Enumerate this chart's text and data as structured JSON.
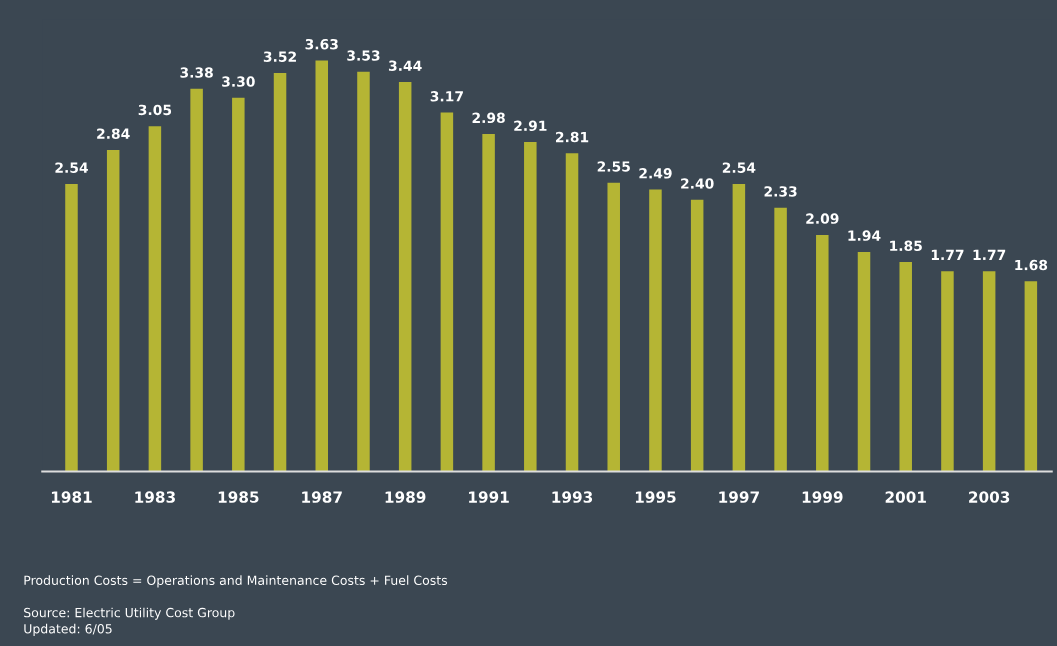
{
  "chart_data": {
    "type": "bar",
    "categories": [
      "1981",
      null,
      "1983",
      null,
      "1985",
      null,
      "1987",
      null,
      "1989",
      null,
      "1991",
      null,
      "1993",
      null,
      "1995",
      null,
      "1997",
      null,
      "1999",
      null,
      "2001",
      null,
      "2003",
      null
    ],
    "values": [
      2.54,
      2.84,
      3.05,
      3.38,
      3.3,
      3.52,
      3.63,
      3.53,
      3.44,
      3.17,
      2.98,
      2.91,
      2.81,
      2.55,
      2.49,
      2.4,
      2.54,
      2.33,
      2.09,
      1.94,
      1.85,
      1.77,
      1.77,
      1.68
    ],
    "value_labels": [
      "2.54",
      "2.84",
      "3.05",
      "3.38",
      "3.30",
      "3.52",
      "3.63",
      "3.53",
      "3.44",
      "3.17",
      "2.98",
      "2.91",
      "2.81",
      "2.55",
      "2.49",
      "2.40",
      "2.54",
      "2.33",
      "2.09",
      "1.94",
      "1.85",
      "1.77",
      "1.77",
      "1.68"
    ],
    "color": "#b5b534",
    "grid": false,
    "legend": false,
    "annotations": [
      "Production Costs = Operations and Maintenance Costs + Fuel Costs",
      "Source: Electric Utility Cost Group",
      "Updated: 6/05"
    ]
  }
}
